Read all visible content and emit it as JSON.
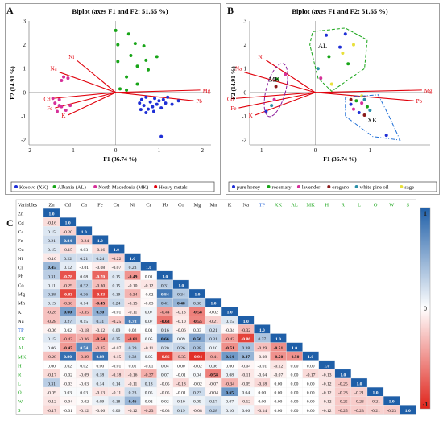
{
  "panel_letters": {
    "a": "A",
    "b": "B",
    "c": "C"
  },
  "chart_data": [
    {
      "type": "scatter",
      "panel": "A",
      "title": "Biplot (axes F1 and F2: 51.65 %)",
      "xlabel": "F1 (36.74 %)",
      "ylabel": "F2 (14.91 %)",
      "xlim": [
        -2,
        2.2
      ],
      "ylim": [
        -2.2,
        3
      ],
      "xticks": [
        -2,
        -1,
        0,
        1,
        2
      ],
      "yticks": [
        -2,
        -1,
        0,
        1,
        2,
        3
      ],
      "vectors": [
        {
          "name": "Mg",
          "x": 1.95,
          "y": 0.1
        },
        {
          "name": "Pb",
          "x": 1.8,
          "y": -0.35
        },
        {
          "name": "Na",
          "x": -1.3,
          "y": 0.85
        },
        {
          "name": "Ni",
          "x": -0.9,
          "y": 1.35
        },
        {
          "name": "Cd",
          "x": -1.45,
          "y": -0.25
        },
        {
          "name": "Fe",
          "x": -1.4,
          "y": -0.65
        },
        {
          "name": "K",
          "x": -1.1,
          "y": -0.95
        }
      ],
      "vector_color": "#e0000b",
      "series": [
        {
          "name": "Kosovo (XK)",
          "color": "#1f2fd6",
          "points": [
            [
              0.55,
              -0.45
            ],
            [
              0.6,
              -0.3
            ],
            [
              0.65,
              -0.55
            ],
            [
              0.7,
              -0.2
            ],
            [
              0.75,
              -0.7
            ],
            [
              0.8,
              -0.4
            ],
            [
              0.85,
              -0.6
            ],
            [
              0.9,
              -0.25
            ],
            [
              0.95,
              -0.5
            ],
            [
              1.0,
              -0.35
            ],
            [
              1.05,
              -0.65
            ],
            [
              1.1,
              -0.3
            ],
            [
              1.15,
              -0.45
            ],
            [
              0.7,
              -0.85
            ],
            [
              1.2,
              -0.2
            ],
            [
              0.58,
              -0.72
            ],
            [
              0.88,
              -0.8
            ],
            [
              1.3,
              -0.5
            ],
            [
              1.05,
              -1.85
            ],
            [
              1.45,
              -0.35
            ]
          ]
        },
        {
          "name": "Albania (AL)",
          "color": "#18a518",
          "points": [
            [
              0.0,
              2.6
            ],
            [
              0.3,
              2.45
            ],
            [
              0.05,
              2.0
            ],
            [
              0.45,
              2.05
            ],
            [
              0.65,
              1.95
            ],
            [
              0.35,
              1.55
            ],
            [
              0.7,
              1.35
            ],
            [
              0.95,
              1.5
            ],
            [
              0.5,
              1.1
            ],
            [
              0.75,
              0.95
            ],
            [
              0.05,
              1.3
            ],
            [
              0.25,
              0.65
            ],
            [
              0.1,
              0.15
            ],
            [
              0.5,
              0.35
            ],
            [
              0.25,
              0.1
            ]
          ]
        },
        {
          "name": "North Macedonia (MK)",
          "color": "#d6309a",
          "points": [
            [
              -1.2,
              0.65
            ],
            [
              -1.1,
              0.6
            ],
            [
              -1.25,
              0.5
            ],
            [
              -1.45,
              -0.25
            ],
            [
              -1.3,
              -0.3
            ],
            [
              -1.4,
              -0.45
            ],
            [
              -1.3,
              -0.55
            ],
            [
              -1.25,
              -0.6
            ],
            [
              -1.15,
              -0.75
            ],
            [
              -1.05,
              -0.55
            ],
            [
              -1.35,
              -0.8
            ]
          ]
        }
      ],
      "legend": [
        "Kosovo (XK)",
        "Albania (AL)",
        "North Macedonia (MK)",
        "Heavy metals"
      ],
      "legend_colors": [
        "#1f2fd6",
        "#18a518",
        "#d6309a",
        "#e0000b"
      ],
      "legend_position": "bottom"
    },
    {
      "type": "scatter",
      "panel": "B",
      "title": "Biplot (axes F1 and F2: 51.65 %)",
      "xlabel": "F1 (36.74 %)",
      "ylabel": "F2 (14.91 %)",
      "xlim": [
        -1.2,
        2.1
      ],
      "ylim": [
        -2.2,
        3
      ],
      "xticks": [
        -1,
        0,
        1
      ],
      "yticks": [
        -2,
        -1,
        0,
        1,
        2,
        3
      ],
      "vectors": [
        {
          "name": "Mg",
          "x": 1.95,
          "y": 0.1
        },
        {
          "name": "Pb",
          "x": 1.8,
          "y": -0.35
        },
        {
          "name": "Na",
          "x": -1.3,
          "y": 0.85
        },
        {
          "name": "Ni",
          "x": -0.9,
          "y": 1.35
        },
        {
          "name": "Cd",
          "x": -1.45,
          "y": -0.25
        },
        {
          "name": "Fe",
          "x": -1.4,
          "y": -0.65
        },
        {
          "name": "K",
          "x": -1.1,
          "y": -0.95
        }
      ],
      "vector_color": "#e0000b",
      "groups": [
        {
          "label": "AL",
          "color": "#18a518"
        },
        {
          "label": "MK",
          "color": "#8b1a9a"
        },
        {
          "label": "XK",
          "color": "#1f6fd6"
        }
      ],
      "series": [
        {
          "name": "pure honey",
          "color": "#1f2fd6",
          "points": [
            [
              0.2,
              2.4
            ],
            [
              0.45,
              1.9
            ],
            [
              0.65,
              -0.5
            ],
            [
              0.8,
              -0.85
            ],
            [
              -0.9,
              -0.8
            ],
            [
              0.55,
              2.45
            ],
            [
              1.3,
              -1.8
            ]
          ]
        },
        {
          "name": "rosemary",
          "color": "#18a518",
          "points": [
            [
              0.25,
              1.5
            ],
            [
              0.6,
              1.2
            ],
            [
              0.75,
              -0.35
            ],
            [
              -0.7,
              0.55
            ],
            [
              0.95,
              -0.6
            ]
          ]
        },
        {
          "name": "lavender",
          "color": "#d6309a",
          "points": [
            [
              -0.55,
              0.75
            ],
            [
              0.1,
              0.6
            ],
            [
              0.7,
              -0.7
            ],
            [
              -0.75,
              -0.3
            ],
            [
              0.85,
              -0.45
            ]
          ]
        },
        {
          "name": "oregano",
          "color": "#8b1a1a",
          "points": [
            [
              -0.72,
              0.25
            ],
            [
              0.9,
              -0.95
            ],
            [
              0.65,
              -0.3
            ]
          ]
        },
        {
          "name": "white pine oil",
          "color": "#2a8fa8",
          "points": [
            [
              0.05,
              1.0
            ],
            [
              0.9,
              -0.3
            ],
            [
              -0.8,
              -0.55
            ],
            [
              1.0,
              -0.75
            ]
          ]
        },
        {
          "name": "sage",
          "color": "#e8e03a",
          "points": [
            [
              0.5,
              1.65
            ],
            [
              0.7,
              2.0
            ],
            [
              0.3,
              0.35
            ],
            [
              0.85,
              -0.15
            ]
          ]
        }
      ],
      "legend": [
        "pure honey",
        "rosemary",
        "lavender",
        "oregano",
        "white pine oil",
        "sage"
      ],
      "legend_position": "bottom"
    },
    {
      "type": "heatmap",
      "panel": "C",
      "corner_label": "Variables",
      "variables": [
        "Zn",
        "Cd",
        "Ca",
        "Fe",
        "Cu",
        "Ni",
        "Cr",
        "Pb",
        "Co",
        "Mg",
        "Mn",
        "K",
        "Na",
        "TP",
        "XK",
        "AL",
        "MK",
        "H",
        "R",
        "L",
        "O",
        "W",
        "S"
      ],
      "variable_colors": {
        "TP": "#1f5fd6",
        "XK": "#18a518",
        "AL": "#18a518",
        "MK": "#18a518",
        "H": "#18a518",
        "R": "#18a518",
        "L": "#18a518",
        "O": "#18a518",
        "W": "#18a518",
        "S": "#18a518"
      },
      "lower_triangle": [
        [],
        [
          -0.16
        ],
        [
          0.15,
          -0.2
        ],
        [
          0.21,
          0.84,
          -0.24
        ],
        [
          0.15,
          -0.15,
          0.03,
          -0.16
        ],
        [
          -0.1,
          0.22,
          0.21,
          0.24,
          -0.22
        ],
        [
          0.45,
          0.12,
          -0.01,
          -0.08,
          -0.07,
          0.23
        ],
        [
          0.31,
          -0.78,
          0.08,
          -0.7,
          0.15,
          -0.49,
          0.01
        ],
        [
          0.11,
          -0.29,
          0.32,
          -0.3,
          0.15,
          -0.1,
          -0.12,
          0.31
        ],
        [
          0.28,
          -0.83,
          0.36,
          -0.83,
          0.19,
          -0.34,
          -0.02,
          0.84,
          0.34
        ],
        [
          0.15,
          -0.36,
          0.14,
          -0.45,
          0.24,
          -0.15,
          -0.03,
          0.41,
          0.48,
          0.3
        ],
        [
          -0.28,
          0.6,
          -0.35,
          0.5,
          -0.01,
          -0.11,
          0.07,
          -0.44,
          -0.13,
          -0.58,
          -0.02
        ],
        [
          -0.28,
          0.27,
          0.15,
          0.31,
          -0.25,
          0.78,
          0.07,
          -0.63,
          -0.1,
          -0.55,
          -0.21,
          0.15
        ],
        [
          -0.06,
          0.02,
          -0.18,
          -0.12,
          0.09,
          0.02,
          0.01,
          0.16,
          -0.06,
          0.03,
          0.21,
          -0.04,
          -0.32
        ],
        [
          0.15,
          -0.43,
          -0.36,
          -0.54,
          0.25,
          -0.61,
          0.05,
          0.66,
          0.09,
          0.56,
          0.31,
          -0.43,
          -0.86,
          0.37
        ],
        [
          0.06,
          -0.47,
          0.74,
          -0.35,
          -0.07,
          0.29,
          -0.11,
          0.2,
          0.26,
          0.38,
          0.1,
          -0.51,
          0.38,
          -0.29,
          -0.51
        ],
        [
          -0.28,
          0.9,
          -0.39,
          0.89,
          -0.15,
          0.32,
          0.05,
          -0.86,
          -0.35,
          -0.94,
          -0.41,
          0.64,
          0.47,
          -0.08,
          -0.5,
          -0.5
        ],
        [
          0.0,
          0.02,
          0.02,
          0.0,
          -0.01,
          0.01,
          -0.01,
          0.04,
          0.0,
          -0.02,
          0.06,
          0.0,
          -0.04,
          -0.01,
          -0.12,
          0.0,
          0.0
        ],
        [
          -0.17,
          -0.02,
          -0.09,
          0.18,
          -0.18,
          -0.16,
          -0.37,
          0.07,
          -0.01,
          0.04,
          -0.58,
          0.08,
          -0.11,
          -0.04,
          -0.07,
          0.0,
          -0.17,
          -0.13
        ],
        [
          0.31,
          -0.03,
          -0.03,
          0.14,
          0.14,
          -0.11,
          0.18,
          -0.05,
          -0.18,
          -0.02,
          -0.07,
          -0.34,
          -0.09,
          -0.18,
          0.0,
          0.0,
          0.0,
          -0.12,
          -0.25
        ],
        [
          -0.09,
          0.03,
          0.03,
          -0.13,
          -0.11,
          0.23,
          0.05,
          -0.05,
          -0.01,
          0.23,
          -0.04,
          0.65,
          0.04,
          0.0,
          0.0,
          0.0,
          0.0,
          -0.12,
          -0.23,
          -0.21
        ],
        [
          -0.12,
          -0.04,
          -0.02,
          0.09,
          0.18,
          0.46,
          0.02,
          0.02,
          0.1,
          0.09,
          0.17,
          0.07,
          -0.12,
          0.0,
          0.0,
          0.0,
          0.0,
          -0.12,
          -0.25,
          -0.23,
          -0.21
        ],
        [
          -0.17,
          -0.01,
          -0.12,
          -0.06,
          0.06,
          -0.12,
          -0.23,
          -0.03,
          0.19,
          -0.08,
          0.28,
          0.1,
          0.06,
          -0.14,
          0.0,
          0.0,
          0.0,
          -0.12,
          -0.25,
          -0.23,
          -0.21,
          -0.23
        ]
      ],
      "colorbar": {
        "max_label": "1",
        "mid_label": "0",
        "min_label": "-1",
        "positive_color": "#1f5fa8",
        "negative_color": "#e0231a"
      }
    }
  ]
}
